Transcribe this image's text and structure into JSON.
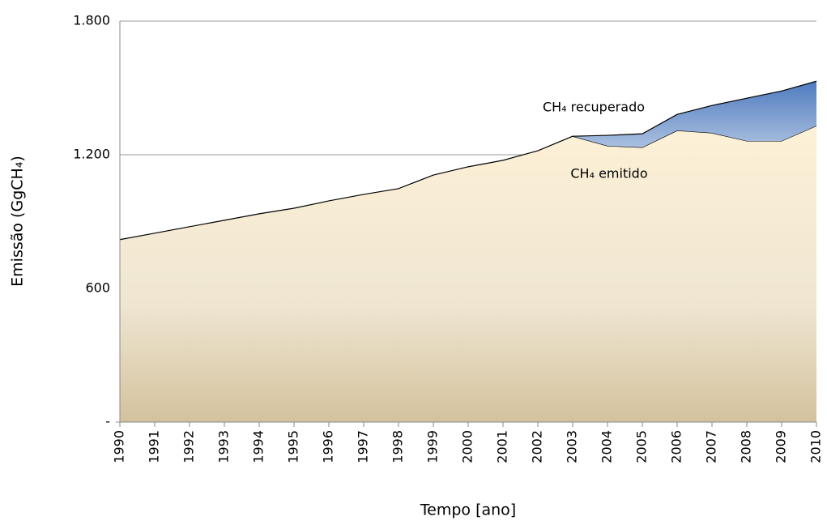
{
  "chart_data": {
    "type": "stacked-area",
    "x_label": "Tempo [ano]",
    "y_label": "Emissão (GgCH₄)",
    "categories": [
      "1990",
      "1991",
      "1992",
      "1993",
      "1994",
      "1995",
      "1996",
      "1997",
      "1998",
      "1999",
      "2000",
      "2001",
      "2002",
      "2003",
      "2004",
      "2005",
      "2006",
      "2007",
      "2008",
      "2009",
      "2010"
    ],
    "series": [
      {
        "name": "CH₄ emitido",
        "color": "#d4c29d",
        "values": [
          819,
          848,
          877,
          906,
          935,
          960,
          993,
          1022,
          1048,
          1109,
          1146,
          1175,
          1218,
          1283,
          1240,
          1233,
          1309,
          1298,
          1262,
          1262,
          1330
        ]
      },
      {
        "name": "CH₄ recuperado",
        "color": "#4f7bbf",
        "values": [
          null,
          null,
          null,
          null,
          null,
          null,
          null,
          null,
          null,
          null,
          null,
          null,
          null,
          0,
          47,
          61,
          72,
          123,
          192,
          224,
          200
        ]
      }
    ],
    "ylim": [
      0,
      1800
    ],
    "yticks": [
      {
        "value": 0,
        "label": "-"
      },
      600,
      {
        "value": 1200,
        "label": "1.200"
      },
      {
        "value": 1800,
        "label": "1.800"
      }
    ],
    "grid": true
  }
}
